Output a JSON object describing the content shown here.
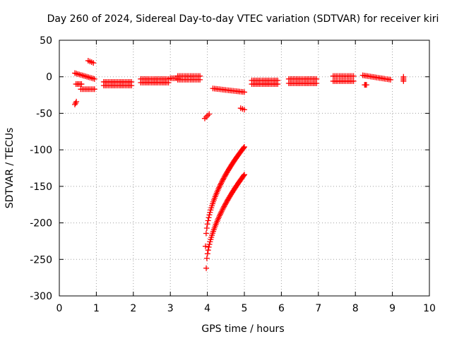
{
  "chart_data": {
    "type": "scatter",
    "title": "Day 260 of 2024, Sidereal Day-to-day VTEC variation (SDTVAR) for receiver kiri",
    "xlabel": "GPS time / hours",
    "ylabel": "SDTVAR / TECUs",
    "xlim": [
      0,
      10
    ],
    "ylim": [
      -300,
      50
    ],
    "xticks": [
      "0",
      "1",
      "2",
      "3",
      "4",
      "5",
      "6",
      "7",
      "8",
      "9",
      "10"
    ],
    "yticks": [
      "50",
      "0",
      "-50",
      "-100",
      "-150",
      "-200",
      "-250",
      "-300"
    ],
    "grid": true,
    "marker": "plus",
    "color": "#ff0000",
    "segments": [
      {
        "x": [
          0.42,
          0.46
        ],
        "y": [
          -38,
          -34
        ]
      },
      {
        "x": [
          0.78,
          0.92
        ],
        "y": [
          22,
          19
        ]
      },
      {
        "x": [
          0.42,
          0.95
        ],
        "y": [
          5,
          -3
        ]
      },
      {
        "x": [
          0.45,
          0.6
        ],
        "y": [
          -10,
          -10
        ]
      },
      {
        "x": [
          0.58,
          0.95
        ],
        "y": [
          -17,
          -17
        ]
      },
      {
        "x": [
          1.2,
          1.95
        ],
        "y": [
          -7,
          -7
        ]
      },
      {
        "x": [
          1.2,
          1.95
        ],
        "y": [
          -12,
          -12
        ]
      },
      {
        "x": [
          2.2,
          2.95
        ],
        "y": [
          -3,
          -3
        ]
      },
      {
        "x": [
          2.2,
          2.95
        ],
        "y": [
          -8,
          -8
        ]
      },
      {
        "x": [
          3.2,
          3.8
        ],
        "y": [
          1,
          1
        ]
      },
      {
        "x": [
          3.2,
          3.8
        ],
        "y": [
          -4,
          -4
        ]
      },
      {
        "x": [
          3.0,
          3.2
        ],
        "y": [
          -2,
          -2
        ]
      },
      {
        "x": [
          4.15,
          5.0
        ],
        "y": [
          -16,
          -21
        ]
      },
      {
        "x": [
          3.93,
          4.05
        ],
        "y": [
          -57,
          -51
        ]
      },
      {
        "x": [
          4.9,
          5.0
        ],
        "y": [
          -43,
          -45
        ]
      },
      {
        "x": [
          5.2,
          5.9
        ],
        "y": [
          -5,
          -5
        ]
      },
      {
        "x": [
          5.2,
          5.9
        ],
        "y": [
          -10,
          -10
        ]
      },
      {
        "x": [
          6.2,
          6.95
        ],
        "y": [
          -3,
          -3
        ]
      },
      {
        "x": [
          6.2,
          6.95
        ],
        "y": [
          -9,
          -9
        ]
      },
      {
        "x": [
          7.4,
          7.95
        ],
        "y": [
          1,
          1
        ]
      },
      {
        "x": [
          7.4,
          7.95
        ],
        "y": [
          -6,
          -6
        ]
      },
      {
        "x": [
          8.2,
          8.95
        ],
        "y": [
          2,
          -4
        ]
      },
      {
        "x": [
          8.25,
          8.3
        ],
        "y": [
          -11,
          -11
        ]
      },
      {
        "x": [
          9.3,
          9.3
        ],
        "y": [
          0,
          -6
        ]
      }
    ],
    "curves": [
      {
        "x0": 3.95,
        "x1": 5.0,
        "y0": -232,
        "y1": -96,
        "exponent": 0.5
      },
      {
        "x0": 3.97,
        "x1": 5.0,
        "y0": -262,
        "y1": -134,
        "exponent": 0.55
      }
    ]
  }
}
